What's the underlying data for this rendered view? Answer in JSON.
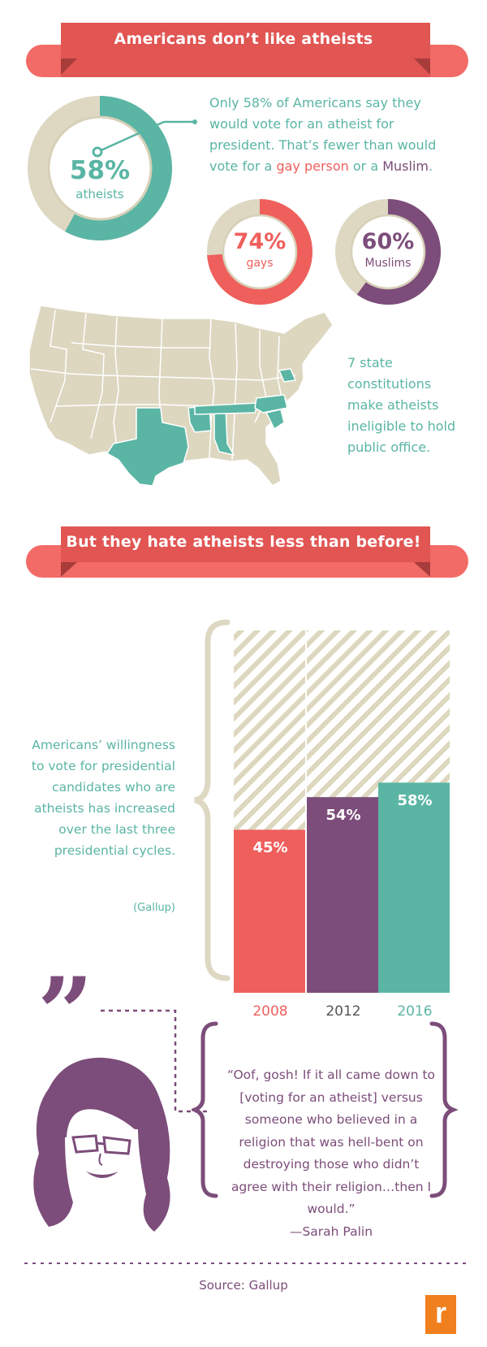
{
  "section1": {
    "title": "Americans don’t like atheists",
    "intro": {
      "part1": "Only 58% of Americans say they would vote for an atheist for president. That’s fewer than would vote for a ",
      "gay": "gay person",
      "part2": " or a ",
      "muslim": "Muslim",
      "part3": "."
    },
    "rings": [
      {
        "pct": "58%",
        "label": "atheists",
        "value": 58,
        "color": "#5ab5a4"
      },
      {
        "pct": "74%",
        "label": "gays",
        "value": 74,
        "color": "#ef5f5c"
      },
      {
        "pct": "60%",
        "label": "Muslims",
        "value": 60,
        "color": "#7c4d7a"
      }
    ],
    "states_text": "7 state constitutions make atheists ineligible to hold public office."
  },
  "section2": {
    "title": "But they hate atheists less than before!",
    "description": "Americans’ willingness to vote for presidential candidates who are atheists has increased over the last three presidential cycles.",
    "citation": "(Gallup)"
  },
  "chart_data": {
    "type": "bar",
    "categories": [
      "2008",
      "2012",
      "2016"
    ],
    "values": [
      45,
      54,
      58
    ],
    "labels": [
      "45%",
      "54%",
      "58%"
    ],
    "colors": [
      "#ef5f5c",
      "#7c4d7a",
      "#5ab5a4"
    ],
    "ylim": [
      0,
      100
    ]
  },
  "quote": {
    "text": "“Oof, gosh! If it all came down to [voting for an atheist] versus someone who believed in a religion that was hell-bent on destroying those who didn’t agree with their religion…then I would.”",
    "author": "—Sarah Palin"
  },
  "footer": {
    "source": "Source: Gallup",
    "logo": "r"
  }
}
